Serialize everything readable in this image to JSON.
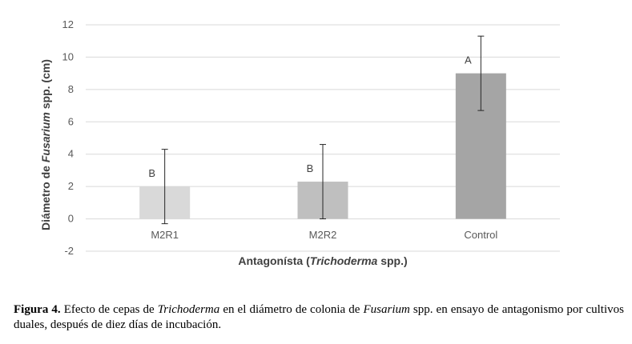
{
  "chart_data": {
    "type": "bar",
    "categories": [
      "M2R1",
      "M2R2",
      "Control"
    ],
    "values": [
      2.0,
      2.3,
      9.0
    ],
    "error_bars": [
      2.3,
      2.3,
      2.3
    ],
    "data_labels": [
      "B",
      "B",
      "A"
    ],
    "bar_colors": [
      "#d9d9d9",
      "#bfbfbf",
      "#a5a5a5"
    ],
    "ylim": [
      -2,
      12
    ],
    "yticks": [
      -2,
      0,
      2,
      4,
      6,
      8,
      10,
      12
    ],
    "grid": true,
    "ylabel_parts": [
      "Diámetro de ",
      "Fusarium",
      " spp. (cm)"
    ],
    "xlabel_parts": [
      "Antagonísta (",
      "Trichoderma",
      " spp.)"
    ]
  },
  "caption": {
    "label": "Figura 4.",
    "t1": " Efecto de cepas de ",
    "i1": "Trichoderma",
    "t2": " en el diámetro de colonia de ",
    "i2": "Fusarium",
    "t3": " spp. en ensayo de antagonismo por cultivos duales, después de diez días de incubación."
  }
}
